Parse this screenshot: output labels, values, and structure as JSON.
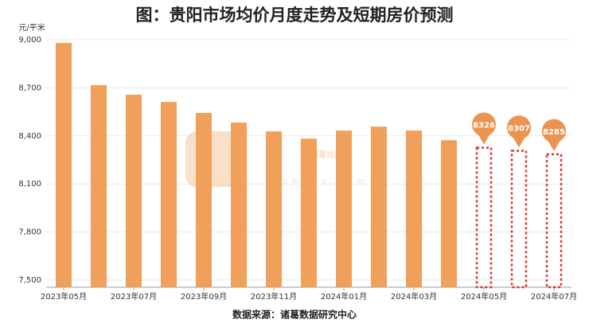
{
  "chart_data": {
    "type": "bar",
    "title": "图：贵阳市场均价月度走势及短期房价预测",
    "y_label": "元/平米",
    "source": "数据来源：诸葛数据研究中心",
    "watermark": [
      "诸葛找房",
      "zhuge.com"
    ],
    "categories": [
      "2023年05月",
      null,
      "2023年07月",
      null,
      "2023年09月",
      null,
      "2023年11月",
      null,
      "2024年01月",
      null,
      "2024年03月",
      null,
      "2024年05月",
      null,
      "2024年07月"
    ],
    "series": [
      {
        "color": "#f0a05a",
        "values": [
          8980,
          8717,
          8657,
          8612,
          8543,
          8483,
          8428,
          8383,
          8433,
          8458,
          8433,
          8373,
          null,
          null,
          null
        ]
      },
      {
        "color": "#e03030",
        "dashed": true,
        "values": [
          null,
          null,
          null,
          null,
          null,
          null,
          null,
          null,
          null,
          null,
          null,
          null,
          8326,
          8307,
          8285
        ]
      }
    ],
    "ylim": [
      7455,
      9000
    ],
    "yticks": [
      {
        "value": 7500,
        "label": "7,500"
      },
      {
        "value": 7800,
        "label": "7,800"
      },
      {
        "value": 8100,
        "label": "8,100"
      },
      {
        "value": 8400,
        "label": "8,400"
      },
      {
        "value": 8700,
        "label": "8,700"
      },
      {
        "value": 9000,
        "label": "9,000"
      }
    ],
    "grid": true
  }
}
